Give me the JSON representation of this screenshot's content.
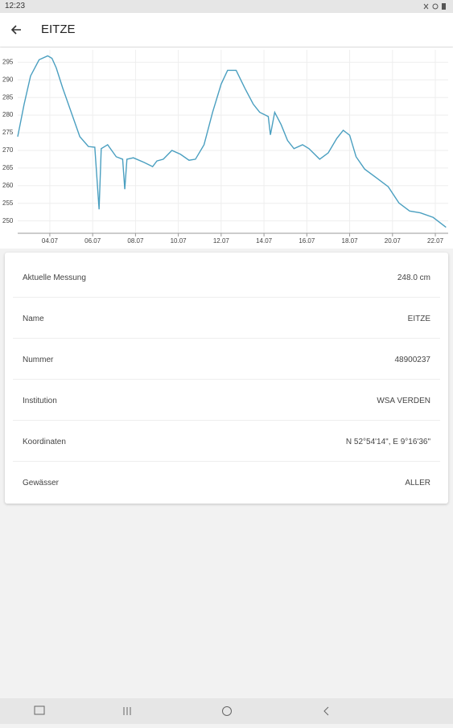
{
  "status_bar": {
    "time": "12:23"
  },
  "app_bar": {
    "title": "EITZE"
  },
  "chart_data": {
    "type": "line",
    "x": [
      2.5,
      2.8,
      3.1,
      3.5,
      3.9,
      4.1,
      4.3,
      4.6,
      5.0,
      5.4,
      5.8,
      6.1,
      6.3,
      6.4,
      6.7,
      7.1,
      7.4,
      7.5,
      7.6,
      7.9,
      8.4,
      8.8,
      9.0,
      9.3,
      9.7,
      10.1,
      10.5,
      10.8,
      11.2,
      11.6,
      12.0,
      12.3,
      12.7,
      13.1,
      13.5,
      13.8,
      14.2,
      14.3,
      14.5,
      14.8,
      15.1,
      15.4,
      15.8,
      16.1,
      16.6,
      17.0,
      17.4,
      17.7,
      18.0,
      18.3,
      18.7,
      19.3,
      19.8,
      20.3,
      20.8,
      21.3,
      21.9,
      22.5
    ],
    "series": [
      {
        "color": "#4a9fc0",
        "values": [
          273.9,
          283.1,
          291.1,
          295.7,
          296.8,
          296.1,
          293.4,
          287.7,
          280.8,
          273.9,
          271.1,
          270.9,
          253.3,
          270.5,
          271.6,
          268.2,
          267.5,
          259.0,
          267.5,
          267.9,
          266.6,
          265.4,
          267.0,
          267.5,
          270.0,
          268.9,
          267.2,
          267.5,
          271.6,
          280.8,
          288.8,
          292.7,
          292.7,
          287.7,
          283.1,
          280.8,
          279.6,
          274.4,
          280.8,
          277.3,
          272.8,
          270.5,
          271.6,
          270.5,
          267.5,
          269.3,
          273.4,
          275.7,
          274.3,
          268.2,
          264.7,
          262.0,
          259.7,
          255.1,
          252.8,
          252.3,
          251.0,
          248.2
        ]
      }
    ],
    "xlim": [
      2.5,
      22.6
    ],
    "xticks": [
      {
        "value": 4,
        "label": "04.07"
      },
      {
        "value": 6,
        "label": "06.07"
      },
      {
        "value": 8,
        "label": "08.07"
      },
      {
        "value": 10,
        "label": "10.07"
      },
      {
        "value": 12,
        "label": "12.07"
      },
      {
        "value": 14,
        "label": "14.07"
      },
      {
        "value": 16,
        "label": "16.07"
      },
      {
        "value": 18,
        "label": "18.07"
      },
      {
        "value": 20,
        "label": "20.07"
      },
      {
        "value": 22,
        "label": "22.07"
      }
    ],
    "ylim": [
      246.5,
      298.5
    ],
    "yticks": [
      250,
      255,
      260,
      265,
      270,
      275,
      280,
      285,
      290,
      295
    ],
    "grid": true
  },
  "details": [
    {
      "label": "Aktuelle Messung",
      "value": "248.0 cm"
    },
    {
      "label": "Name",
      "value": "EITZE"
    },
    {
      "label": "Nummer",
      "value": "48900237"
    },
    {
      "label": "Institution",
      "value": "WSA VERDEN"
    },
    {
      "label": "Koordinaten",
      "value": "N 52°54'14\", E 9°16'36\""
    },
    {
      "label": "Gewässer",
      "value": "ALLER"
    }
  ]
}
